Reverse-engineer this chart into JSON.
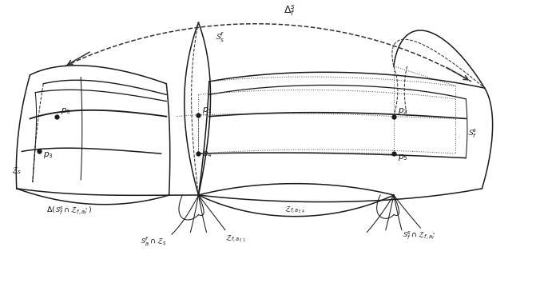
{
  "fig_width": 6.71,
  "fig_height": 3.84,
  "bg_color": "#ffffff",
  "line_color": "#1a1a1a",
  "dashed_color": "#333333",
  "dotted_color": "#555555",
  "labels": {
    "delta_fs": "$\\Delta_f^s$",
    "Ssf": "$\\mathcal{S}_s^f$",
    "Sfs": "$\\mathcal{S}_f^s$",
    "Zs": "$\\mathcal{Z}_s$",
    "delta_cap": "$\\Delta(\\mathcal{S}_f^s \\cap \\mathcal{Z}_{f,a_f^*})$",
    "Ssf_cap_Zs": "$\\mathcal{S}_a^f \\cap \\mathcal{Z}_s$",
    "Zf_af1": "$\\mathcal{Z}_{f,a_{f,1}}$",
    "Zf_af4": "$\\mathcal{Z}_{f,a_{f,4}}$",
    "Sfs_cap": "$\\mathcal{S}_f^s \\cap \\mathcal{Z}_{f,a_f^*}$",
    "p0": "$p_0$",
    "p1": "$p_1$",
    "p2": "$p_2$",
    "p3": "$p_3$",
    "p4": "$p_4$",
    "p5": "$p_5$"
  }
}
